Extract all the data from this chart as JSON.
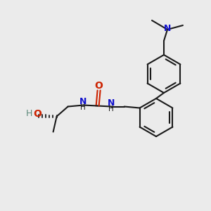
{
  "bg_color": "#ebebeb",
  "bond_color": "#1a1a1a",
  "n_color": "#1111cc",
  "o_color": "#cc2200",
  "teal_color": "#5a8878",
  "lw": 1.5,
  "figsize": [
    3.0,
    3.0
  ],
  "dpi": 100,
  "xlim": [
    0,
    300
  ],
  "ylim": [
    0,
    300
  ]
}
